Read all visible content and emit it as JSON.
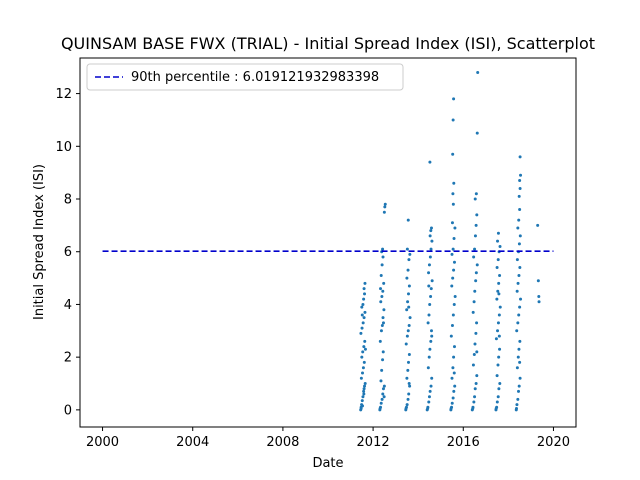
{
  "chart_data": {
    "type": "scatter",
    "title": "QUINSAM BASE FWX (TRIAL) - Initial Spread Index (ISI), Scatterplot",
    "xlabel": "Date",
    "ylabel": "Initial Spread Index (ISI)",
    "xlim": [
      1999.0,
      2021.0
    ],
    "ylim": [
      -0.65,
      13.35
    ],
    "xticks": [
      2000,
      2004,
      2008,
      2012,
      2016,
      2020
    ],
    "yticks": [
      0,
      2,
      4,
      6,
      8,
      10,
      12
    ],
    "grid": false,
    "legend_position": "top-left",
    "point_color": "#1f77b4",
    "reference_line": {
      "label": "90th percentile : 6.019121932983398",
      "value": 6.019121932983398,
      "x_range": [
        2000,
        2020
      ],
      "color": "#0000cc",
      "style": "dashed"
    },
    "series": [
      {
        "values": [
          [
            2011.45,
            0.0
          ],
          [
            2011.47,
            0.1
          ],
          [
            2011.49,
            0.2
          ],
          [
            2011.52,
            0.35
          ],
          [
            2011.55,
            0.5
          ],
          [
            2011.58,
            0.7
          ],
          [
            2011.6,
            0.8
          ],
          [
            2011.62,
            0.9
          ],
          [
            2011.65,
            1.0
          ],
          [
            2011.48,
            1.2
          ],
          [
            2011.53,
            1.4
          ],
          [
            2011.57,
            1.6
          ],
          [
            2011.61,
            1.8
          ],
          [
            2011.5,
            2.0
          ],
          [
            2011.54,
            2.2
          ],
          [
            2011.59,
            2.4
          ],
          [
            2011.63,
            2.6
          ],
          [
            2011.46,
            2.9
          ],
          [
            2011.51,
            3.1
          ],
          [
            2011.56,
            3.3
          ],
          [
            2011.6,
            3.5
          ],
          [
            2011.64,
            3.7
          ],
          [
            2011.5,
            3.9
          ],
          [
            2011.55,
            4.0
          ],
          [
            2011.58,
            4.2
          ],
          [
            2011.62,
            4.4
          ],
          [
            2011.6,
            4.6
          ],
          [
            2011.64,
            4.8
          ],
          [
            2011.47,
            0.05
          ],
          [
            2011.53,
            0.15
          ],
          [
            2011.59,
            0.6
          ],
          [
            2011.66,
            2.3
          ],
          [
            2011.52,
            3.6
          ],
          [
            2012.3,
            0.0
          ],
          [
            2012.33,
            0.1
          ],
          [
            2012.36,
            0.25
          ],
          [
            2012.4,
            0.4
          ],
          [
            2012.43,
            0.6
          ],
          [
            2012.46,
            0.8
          ],
          [
            2012.5,
            0.9
          ],
          [
            2012.35,
            1.1
          ],
          [
            2012.38,
            1.5
          ],
          [
            2012.42,
            1.9
          ],
          [
            2012.45,
            2.2
          ],
          [
            2012.32,
            2.6
          ],
          [
            2012.37,
            3.0
          ],
          [
            2012.41,
            3.2
          ],
          [
            2012.44,
            3.5
          ],
          [
            2012.48,
            3.8
          ],
          [
            2012.34,
            4.1
          ],
          [
            2012.39,
            4.3
          ],
          [
            2012.43,
            4.5
          ],
          [
            2012.47,
            4.8
          ],
          [
            2012.36,
            5.1
          ],
          [
            2012.4,
            5.5
          ],
          [
            2012.44,
            5.8
          ],
          [
            2012.38,
            6.0
          ],
          [
            2012.42,
            6.1
          ],
          [
            2012.5,
            7.5
          ],
          [
            2012.52,
            7.7
          ],
          [
            2012.54,
            7.8
          ],
          [
            2012.31,
            0.05
          ],
          [
            2012.49,
            0.5
          ],
          [
            2012.46,
            3.3
          ],
          [
            2012.33,
            4.6
          ],
          [
            2013.45,
            0.0
          ],
          [
            2013.48,
            0.1
          ],
          [
            2013.51,
            0.2
          ],
          [
            2013.55,
            0.4
          ],
          [
            2013.58,
            0.6
          ],
          [
            2013.62,
            0.9
          ],
          [
            2013.5,
            1.2
          ],
          [
            2013.54,
            1.5
          ],
          [
            2013.57,
            1.8
          ],
          [
            2013.61,
            2.1
          ],
          [
            2013.47,
            2.5
          ],
          [
            2013.52,
            2.8
          ],
          [
            2013.56,
            3.0
          ],
          [
            2013.6,
            3.2
          ],
          [
            2013.64,
            3.5
          ],
          [
            2013.49,
            3.8
          ],
          [
            2013.53,
            4.1
          ],
          [
            2013.57,
            4.4
          ],
          [
            2013.61,
            4.7
          ],
          [
            2013.5,
            5.0
          ],
          [
            2013.55,
            5.3
          ],
          [
            2013.59,
            5.7
          ],
          [
            2013.63,
            5.9
          ],
          [
            2013.52,
            6.1
          ],
          [
            2013.56,
            7.2
          ],
          [
            2013.46,
            0.05
          ],
          [
            2013.6,
            1.0
          ],
          [
            2013.58,
            3.9
          ],
          [
            2014.4,
            0.0
          ],
          [
            2014.43,
            0.1
          ],
          [
            2014.47,
            0.3
          ],
          [
            2014.5,
            0.5
          ],
          [
            2014.53,
            0.7
          ],
          [
            2014.57,
            0.9
          ],
          [
            2014.6,
            1.2
          ],
          [
            2014.45,
            1.6
          ],
          [
            2014.49,
            2.0
          ],
          [
            2014.52,
            2.3
          ],
          [
            2014.56,
            2.6
          ],
          [
            2014.59,
            3.0
          ],
          [
            2014.44,
            3.3
          ],
          [
            2014.48,
            3.6
          ],
          [
            2014.51,
            4.0
          ],
          [
            2014.55,
            4.3
          ],
          [
            2014.58,
            4.6
          ],
          [
            2014.62,
            4.9
          ],
          [
            2014.46,
            5.2
          ],
          [
            2014.5,
            5.5
          ],
          [
            2014.54,
            5.8
          ],
          [
            2014.57,
            6.1
          ],
          [
            2014.61,
            6.4
          ],
          [
            2014.53,
            6.6
          ],
          [
            2014.56,
            6.8
          ],
          [
            2014.59,
            6.9
          ],
          [
            2014.52,
            9.4
          ],
          [
            2014.42,
            0.05
          ],
          [
            2014.6,
            2.8
          ],
          [
            2014.47,
            4.7
          ],
          [
            2015.45,
            0.0
          ],
          [
            2015.48,
            0.1
          ],
          [
            2015.51,
            0.25
          ],
          [
            2015.55,
            0.45
          ],
          [
            2015.58,
            0.7
          ],
          [
            2015.62,
            0.9
          ],
          [
            2015.5,
            1.2
          ],
          [
            2015.54,
            1.6
          ],
          [
            2015.57,
            2.0
          ],
          [
            2015.61,
            2.4
          ],
          [
            2015.47,
            2.8
          ],
          [
            2015.52,
            3.2
          ],
          [
            2015.56,
            3.6
          ],
          [
            2015.6,
            4.0
          ],
          [
            2015.64,
            4.3
          ],
          [
            2015.49,
            4.7
          ],
          [
            2015.53,
            5.0
          ],
          [
            2015.57,
            5.3
          ],
          [
            2015.61,
            5.6
          ],
          [
            2015.5,
            5.9
          ],
          [
            2015.55,
            6.1
          ],
          [
            2015.59,
            6.5
          ],
          [
            2015.63,
            6.9
          ],
          [
            2015.52,
            7.1
          ],
          [
            2015.56,
            7.8
          ],
          [
            2015.54,
            8.2
          ],
          [
            2015.58,
            8.6
          ],
          [
            2015.53,
            9.7
          ],
          [
            2015.55,
            11.0
          ],
          [
            2015.57,
            11.8
          ],
          [
            2015.46,
            0.05
          ],
          [
            2015.6,
            1.4
          ],
          [
            2016.4,
            0.0
          ],
          [
            2016.43,
            0.1
          ],
          [
            2016.47,
            0.3
          ],
          [
            2016.5,
            0.5
          ],
          [
            2016.53,
            0.8
          ],
          [
            2016.57,
            1.0
          ],
          [
            2016.6,
            1.3
          ],
          [
            2016.45,
            1.7
          ],
          [
            2016.49,
            2.1
          ],
          [
            2016.52,
            2.5
          ],
          [
            2016.56,
            2.9
          ],
          [
            2016.59,
            3.3
          ],
          [
            2016.44,
            3.7
          ],
          [
            2016.48,
            4.1
          ],
          [
            2016.51,
            4.5
          ],
          [
            2016.55,
            4.9
          ],
          [
            2016.58,
            5.2
          ],
          [
            2016.62,
            5.5
          ],
          [
            2016.46,
            5.8
          ],
          [
            2016.5,
            6.1
          ],
          [
            2016.54,
            6.6
          ],
          [
            2016.57,
            7.0
          ],
          [
            2016.6,
            7.4
          ],
          [
            2016.53,
            8.0
          ],
          [
            2016.58,
            8.2
          ],
          [
            2016.62,
            10.5
          ],
          [
            2016.64,
            12.8
          ],
          [
            2016.42,
            0.05
          ],
          [
            2016.6,
            2.2
          ],
          [
            2017.45,
            0.0
          ],
          [
            2017.48,
            0.1
          ],
          [
            2017.51,
            0.3
          ],
          [
            2017.55,
            0.5
          ],
          [
            2017.58,
            0.8
          ],
          [
            2017.62,
            1.0
          ],
          [
            2017.5,
            1.3
          ],
          [
            2017.54,
            1.7
          ],
          [
            2017.57,
            2.0
          ],
          [
            2017.61,
            2.3
          ],
          [
            2017.47,
            2.7
          ],
          [
            2017.52,
            3.0
          ],
          [
            2017.56,
            3.3
          ],
          [
            2017.6,
            3.6
          ],
          [
            2017.64,
            3.9
          ],
          [
            2017.49,
            4.2
          ],
          [
            2017.53,
            4.5
          ],
          [
            2017.57,
            4.8
          ],
          [
            2017.61,
            5.1
          ],
          [
            2017.5,
            5.4
          ],
          [
            2017.55,
            5.7
          ],
          [
            2017.59,
            6.0
          ],
          [
            2017.63,
            6.2
          ],
          [
            2017.52,
            6.4
          ],
          [
            2017.56,
            6.7
          ],
          [
            2017.46,
            0.05
          ],
          [
            2017.6,
            2.8
          ],
          [
            2017.58,
            4.4
          ],
          [
            2018.35,
            0.0
          ],
          [
            2018.38,
            0.2
          ],
          [
            2018.42,
            0.4
          ],
          [
            2018.45,
            0.7
          ],
          [
            2018.48,
            0.9
          ],
          [
            2018.52,
            1.2
          ],
          [
            2018.4,
            1.6
          ],
          [
            2018.44,
            2.0
          ],
          [
            2018.47,
            2.3
          ],
          [
            2018.51,
            2.6
          ],
          [
            2018.37,
            3.0
          ],
          [
            2018.42,
            3.3
          ],
          [
            2018.46,
            3.6
          ],
          [
            2018.5,
            3.9
          ],
          [
            2018.54,
            4.2
          ],
          [
            2018.39,
            4.5
          ],
          [
            2018.43,
            4.8
          ],
          [
            2018.47,
            5.1
          ],
          [
            2018.51,
            5.4
          ],
          [
            2018.4,
            5.7
          ],
          [
            2018.45,
            6.0
          ],
          [
            2018.49,
            6.3
          ],
          [
            2018.53,
            6.6
          ],
          [
            2018.42,
            6.9
          ],
          [
            2018.46,
            7.2
          ],
          [
            2018.5,
            7.6
          ],
          [
            2018.48,
            8.1
          ],
          [
            2018.52,
            8.4
          ],
          [
            2018.5,
            8.7
          ],
          [
            2018.54,
            8.9
          ],
          [
            2018.52,
            9.6
          ],
          [
            2018.36,
            0.05
          ],
          [
            2018.5,
            1.8
          ],
          [
            2019.3,
            7.0
          ],
          [
            2019.33,
            4.9
          ],
          [
            2019.35,
            4.3
          ],
          [
            2019.36,
            4.1
          ]
        ]
      }
    ]
  }
}
